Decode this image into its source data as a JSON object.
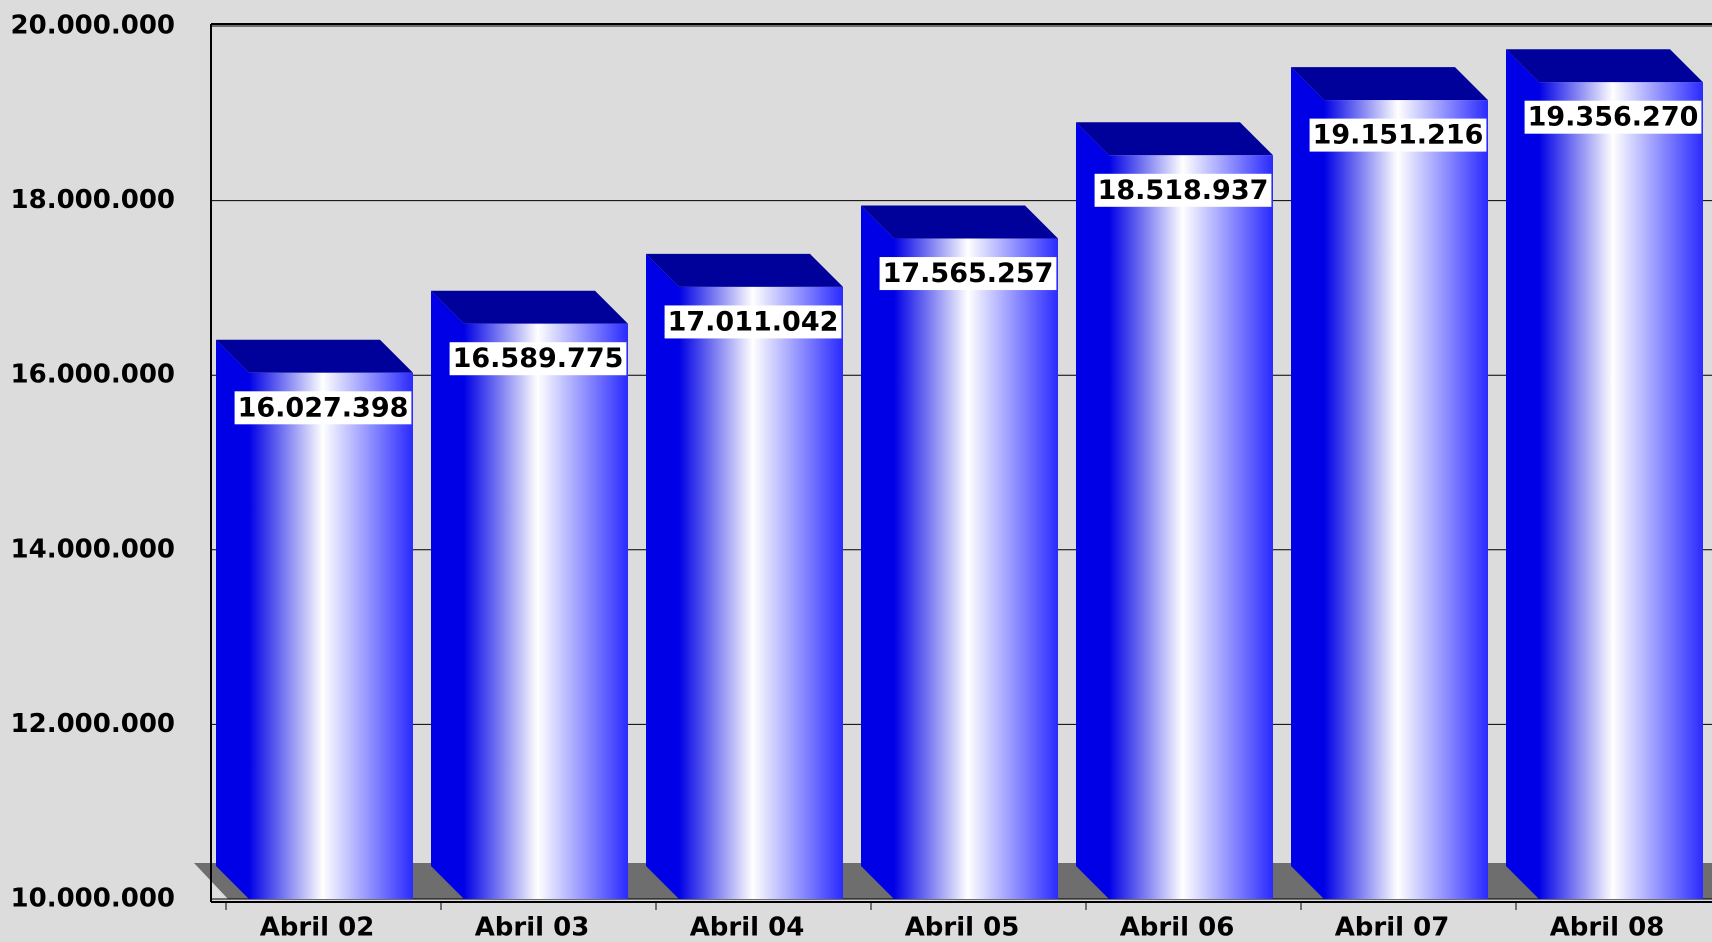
{
  "chart_data": {
    "type": "bar",
    "categories": [
      "Abril 02",
      "Abril 03",
      "Abril 04",
      "Abril 05",
      "Abril 06",
      "Abril 07",
      "Abril 08"
    ],
    "values": [
      16027398,
      16589775,
      17011042,
      17565257,
      18518937,
      19151216,
      19356270
    ],
    "value_labels": [
      "16.027.398",
      "16.589.775",
      "17.011.042",
      "17.565.257",
      "18.518.937",
      "19.151.216",
      "19.356.270"
    ],
    "color": "#0000e6",
    "ylim": [
      10000000,
      20000000
    ],
    "yticks": [
      {
        "value": 10000000,
        "label": "10.000.000"
      },
      {
        "value": 12000000,
        "label": "12.000.000"
      },
      {
        "value": 14000000,
        "label": "14.000.000"
      },
      {
        "value": 16000000,
        "label": "16.000.000"
      },
      {
        "value": 18000000,
        "label": "18.000.000"
      },
      {
        "value": 20000000,
        "label": "20.000.000"
      }
    ],
    "grid": true
  }
}
